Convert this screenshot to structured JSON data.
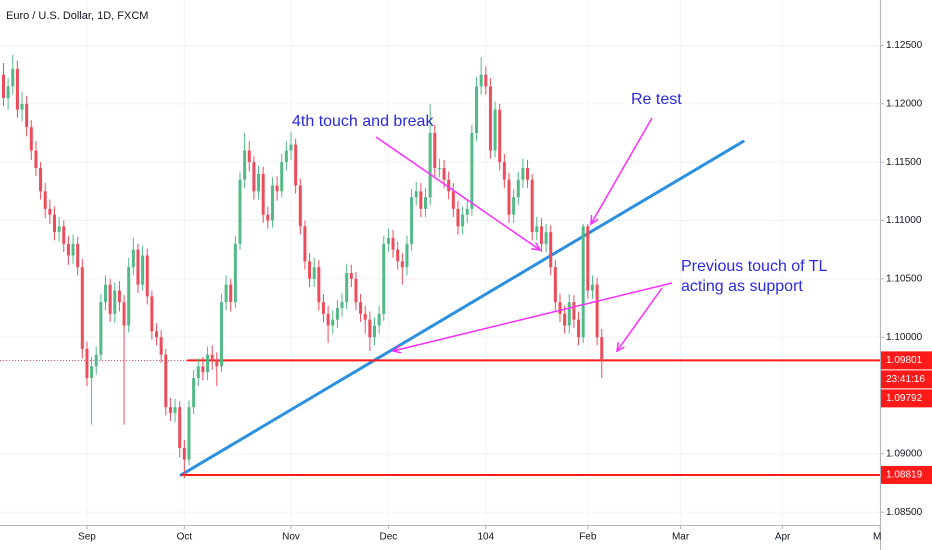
{
  "chart_data": {
    "type": "candlestick",
    "title": "Euro / U.S. Dollar, 1D, FXCM",
    "x": [
      0,
      1,
      2,
      3,
      4,
      5,
      6,
      7,
      8,
      9,
      10,
      11,
      12,
      13,
      14,
      15,
      16,
      17,
      18,
      19,
      20,
      21,
      22,
      23,
      24,
      25,
      26,
      27,
      28,
      29,
      30,
      31,
      32,
      33,
      34,
      35,
      36,
      37,
      38,
      39,
      40,
      41,
      42,
      43,
      44,
      45,
      46,
      47,
      48,
      49,
      50,
      51,
      52,
      53,
      54,
      55,
      56,
      57,
      58,
      59,
      60,
      61,
      62,
      63,
      64,
      65,
      66,
      67,
      68,
      69,
      70,
      71,
      72,
      73,
      74,
      75,
      76,
      77,
      78,
      79,
      80,
      81,
      82,
      83,
      84,
      85,
      86,
      87,
      88,
      89,
      90,
      91,
      92,
      93,
      94,
      95,
      96,
      97,
      98,
      99,
      100,
      101,
      102,
      103,
      104,
      105,
      106,
      107,
      108,
      109,
      110,
      111,
      112,
      113,
      114,
      115,
      116,
      117,
      118,
      119,
      120,
      121,
      122,
      123,
      124,
      125,
      126,
      127,
      128,
      129
    ],
    "open": [
      1.1225,
      1.1205,
      1.1215,
      1.123,
      1.1195,
      1.12,
      1.118,
      1.116,
      1.1145,
      1.1125,
      1.111,
      1.1105,
      1.109,
      1.1095,
      1.108,
      1.107,
      1.108,
      1.106,
      1.099,
      1.0965,
      1.0975,
      1.0985,
      1.103,
      1.1045,
      1.102,
      1.104,
      1.103,
      1.101,
      1.106,
      1.1075,
      1.1045,
      1.107,
      1.1035,
      1.1005,
      1.1,
      1.0985,
      1.094,
      1.0935,
      1.094,
      1.0905,
      1.0895,
      1.094,
      1.0965,
      1.0975,
      1.097,
      1.0985,
      1.098,
      1.0975,
      1.103,
      1.1045,
      1.103,
      1.108,
      1.1135,
      1.116,
      1.115,
      1.1125,
      1.114,
      1.1105,
      1.11,
      1.113,
      1.1125,
      1.115,
      1.116,
      1.1165,
      1.113,
      1.1095,
      1.1065,
      1.105,
      1.106,
      1.103,
      1.102,
      1.101,
      1.1015,
      1.1025,
      1.103,
      1.1055,
      1.105,
      1.103,
      1.102,
      1.1015,
      1.1,
      1.101,
      1.102,
      1.108,
      1.1085,
      1.1075,
      1.1065,
      1.106,
      1.108,
      1.112,
      1.1125,
      1.111,
      1.112,
      1.1175,
      1.1145,
      1.1145,
      1.1135,
      1.1125,
      1.111,
      1.1095,
      1.1105,
      1.111,
      1.1175,
      1.1215,
      1.1225,
      1.1215,
      1.116,
      1.1195,
      1.115,
      1.1135,
      1.1105,
      1.112,
      1.1135,
      1.1145,
      1.1135,
      1.109,
      1.1095,
      1.108,
      1.109,
      1.106,
      1.103,
      1.102,
      1.101,
      1.103,
      1.1015,
      1.1,
      1.1095,
      1.104,
      1.1045,
      1.1
    ],
    "high": [
      1.1235,
      1.1222,
      1.1242,
      1.1237,
      1.121,
      1.1207,
      1.1186,
      1.1168,
      1.115,
      1.1132,
      1.1118,
      1.1112,
      1.1103,
      1.11,
      1.1087,
      1.1088,
      1.1086,
      1.1067,
      1.0996,
      1.0983,
      1.0992,
      1.1037,
      1.1053,
      1.105,
      1.1047,
      1.1048,
      1.1036,
      1.1068,
      1.1085,
      1.108,
      1.1078,
      1.1076,
      1.104,
      1.1012,
      1.1006,
      1.099,
      1.0948,
      1.0947,
      1.0945,
      1.0912,
      1.0946,
      1.0972,
      1.0982,
      1.0983,
      1.0992,
      1.0993,
      1.0987,
      1.1037,
      1.1053,
      1.105,
      1.1087,
      1.1142,
      1.1175,
      1.1168,
      1.1155,
      1.1147,
      1.1146,
      1.1112,
      1.1137,
      1.1138,
      1.1157,
      1.1168,
      1.1176,
      1.117,
      1.1136,
      1.11,
      1.1072,
      1.1068,
      1.1066,
      1.1037,
      1.1027,
      1.1023,
      1.1032,
      1.1038,
      1.1063,
      1.1062,
      1.1056,
      1.1037,
      1.1027,
      1.1022,
      1.1017,
      1.1027,
      1.1087,
      1.1093,
      1.1092,
      1.1082,
      1.1072,
      1.1087,
      1.1127,
      1.1133,
      1.1132,
      1.1128,
      1.12,
      1.1182,
      1.1153,
      1.1152,
      1.1142,
      1.1132,
      1.1117,
      1.1112,
      1.1118,
      1.1182,
      1.1223,
      1.124,
      1.1232,
      1.1222,
      1.1202,
      1.12,
      1.1157,
      1.1141,
      1.1127,
      1.1142,
      1.1153,
      1.1152,
      1.114,
      1.1103,
      1.1102,
      1.1097,
      1.1096,
      1.1066,
      1.1037,
      1.1027,
      1.1037,
      1.1036,
      1.1022,
      1.1097,
      1.1097,
      1.1053,
      1.1051,
      1.1007
    ],
    "low": [
      1.1198,
      1.1195,
      1.1208,
      1.1188,
      1.1185,
      1.1172,
      1.1152,
      1.1138,
      1.1118,
      1.1102,
      1.1097,
      1.1083,
      1.1082,
      1.1073,
      1.1062,
      1.1063,
      1.1053,
      1.0982,
      1.0958,
      1.0925,
      1.0968,
      1.098,
      1.1023,
      1.1013,
      1.1012,
      1.1022,
      1.0925,
      1.1004,
      1.1053,
      1.1038,
      1.104,
      1.1028,
      1.0998,
      1.0993,
      1.0978,
      1.0933,
      1.0928,
      1.0927,
      1.0897,
      1.0879,
      1.089,
      1.0934,
      1.0958,
      1.0963,
      1.0963,
      1.0972,
      1.0958,
      1.097,
      1.1023,
      1.1022,
      1.1025,
      1.1075,
      1.1128,
      1.1142,
      1.1118,
      1.1118,
      1.1098,
      1.1093,
      1.1094,
      1.1117,
      1.112,
      1.1143,
      1.1152,
      1.1123,
      1.1088,
      1.1058,
      1.1043,
      1.1043,
      1.1023,
      1.1013,
      1.0995,
      1.1003,
      1.1008,
      1.1018,
      1.1024,
      1.1043,
      1.1023,
      1.1013,
      1.1003,
      1.0988,
      1.0993,
      1.1003,
      1.1014,
      1.1073,
      1.1068,
      1.1058,
      1.1045,
      1.1053,
      1.1074,
      1.1113,
      1.1103,
      1.1103,
      1.1113,
      1.1138,
      1.1137,
      1.1128,
      1.1118,
      1.1103,
      1.1088,
      1.1088,
      1.1098,
      1.1104,
      1.1168,
      1.1208,
      1.1208,
      1.1153,
      1.1154,
      1.1143,
      1.1128,
      1.1098,
      1.1098,
      1.1113,
      1.1128,
      1.1128,
      1.1083,
      1.1083,
      1.1073,
      1.1073,
      1.1053,
      1.1023,
      1.1013,
      1.1003,
      1.1003,
      1.1008,
      1.0993,
      1.0995,
      1.1033,
      1.1033,
      1.0993,
      1.0965
    ],
    "close": [
      1.1205,
      1.1215,
      1.123,
      1.1195,
      1.12,
      1.118,
      1.116,
      1.1145,
      1.1125,
      1.111,
      1.1105,
      1.109,
      1.1095,
      1.108,
      1.107,
      1.108,
      1.106,
      1.099,
      1.0965,
      1.0975,
      1.0985,
      1.103,
      1.1045,
      1.102,
      1.104,
      1.103,
      1.101,
      1.106,
      1.1075,
      1.1045,
      1.107,
      1.1035,
      1.1005,
      1.1,
      1.0985,
      1.094,
      1.0935,
      1.094,
      1.0905,
      1.0895,
      1.094,
      1.0965,
      1.0975,
      1.097,
      1.0985,
      1.098,
      1.0975,
      1.103,
      1.1045,
      1.103,
      1.108,
      1.1135,
      1.116,
      1.115,
      1.1125,
      1.114,
      1.1105,
      1.11,
      1.113,
      1.1125,
      1.115,
      1.116,
      1.1165,
      1.113,
      1.1095,
      1.1065,
      1.105,
      1.106,
      1.103,
      1.102,
      1.101,
      1.1015,
      1.1025,
      1.103,
      1.1055,
      1.105,
      1.103,
      1.102,
      1.1015,
      1.1,
      1.101,
      1.102,
      1.108,
      1.1085,
      1.1075,
      1.1065,
      1.106,
      1.108,
      1.112,
      1.1125,
      1.111,
      1.112,
      1.1175,
      1.1145,
      1.1145,
      1.1135,
      1.1125,
      1.111,
      1.1095,
      1.1105,
      1.111,
      1.1175,
      1.1215,
      1.1225,
      1.1215,
      1.116,
      1.1195,
      1.115,
      1.1135,
      1.1105,
      1.112,
      1.1135,
      1.1145,
      1.1135,
      1.109,
      1.1095,
      1.108,
      1.109,
      1.106,
      1.103,
      1.102,
      1.101,
      1.103,
      1.1015,
      1.1,
      1.1095,
      1.104,
      1.1045,
      1.1,
      1.098
    ],
    "up_color": "#53b987",
    "down_color": "#eb4d5c",
    "xlim": [
      -0.75,
      189
    ],
    "xticks": [
      {
        "value": 18,
        "label": "Sep"
      },
      {
        "value": 39,
        "label": "Oct"
      },
      {
        "value": 62,
        "label": "Nov"
      },
      {
        "value": 83,
        "label": "Dec"
      },
      104,
      {
        "value": 126,
        "label": "Feb"
      },
      {
        "value": 146,
        "label": "Mar"
      },
      {
        "value": 168,
        "label": "Apr"
      },
      {
        "value": 189,
        "label": "Ma"
      }
    ],
    "ylim": [
      1.0839,
      1.1289
    ],
    "yticks": [
      {
        "value": 1.085,
        "label": "1.08500"
      },
      {
        "value": 1.09,
        "label": "1.09000"
      },
      {
        "value": 1.1,
        "label": "1.10000"
      },
      {
        "value": 1.105,
        "label": "1.10500"
      },
      {
        "value": 1.11,
        "label": "1.11000"
      },
      {
        "value": 1.115,
        "label": "1.11500"
      },
      {
        "value": 1.12,
        "label": "1.12000"
      },
      {
        "value": 1.125,
        "label": "1.12500"
      }
    ],
    "grid": true,
    "trendline": {
      "x": [
        38.3,
        159.5
      ],
      "y": [
        1.08819,
        1.11678
      ],
      "color": "#2b90e0"
    },
    "hlines": [
      {
        "start": 39.6,
        "value": 1.09801,
        "color": "#ff1a1a"
      },
      {
        "start": 38.3,
        "value": 1.08819,
        "color": "#ff1a1a"
      }
    ],
    "price_labels": [
      {
        "value": 1.09801,
        "label": "1.09801"
      },
      {
        "value": 1.09792,
        "label": "1.09792"
      },
      {
        "value": 1.08819,
        "label": "1.08819"
      }
    ],
    "countdown": "23:41:16",
    "annotations": [
      "4th touch and break",
      "Re test",
      "Previous touch of TL",
      "acting as support"
    ]
  }
}
